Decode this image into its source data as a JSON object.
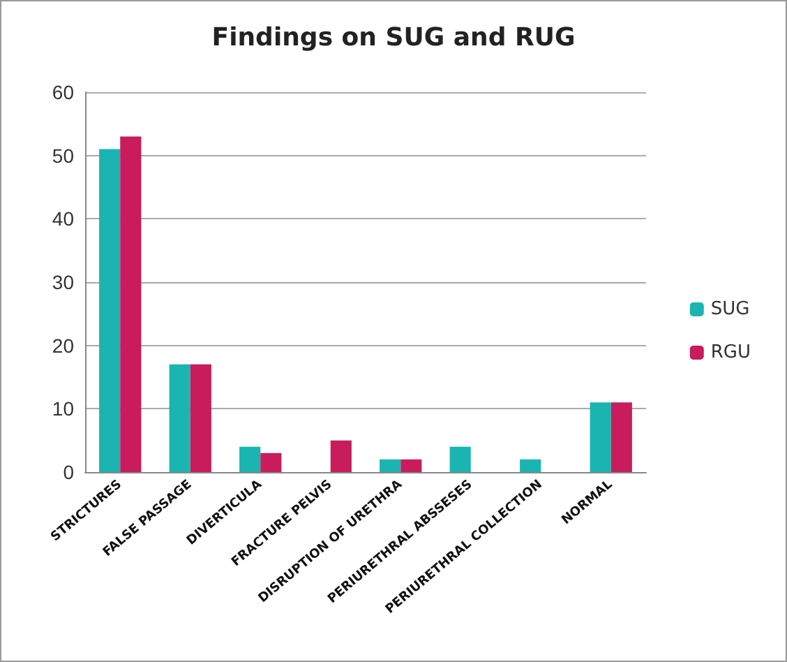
{
  "chart_data": {
    "type": "bar",
    "title": "Findings on SUG and RUG",
    "categories": [
      "STRICTURES",
      "FALSE PASSAGE",
      "DIVERTICULA",
      "FRACTURE PELVIS",
      "DISRUPTION OF URETHRA",
      "PERIURETHRAL ABSSESES",
      "PERIURETHRAL COLLECTION",
      "NORMAL"
    ],
    "series": [
      {
        "name": "SUG",
        "color": "#1ab5b0",
        "values": [
          51,
          17,
          4,
          0,
          2,
          4,
          2,
          11
        ]
      },
      {
        "name": "RGU",
        "color": "#c81c5c",
        "values": [
          53,
          17,
          3,
          5,
          2,
          0,
          0,
          11
        ]
      }
    ],
    "ylim": [
      0,
      60
    ],
    "yticks": [
      0,
      10,
      20,
      30,
      40,
      50,
      60
    ],
    "grid": "y",
    "legend": "right"
  }
}
